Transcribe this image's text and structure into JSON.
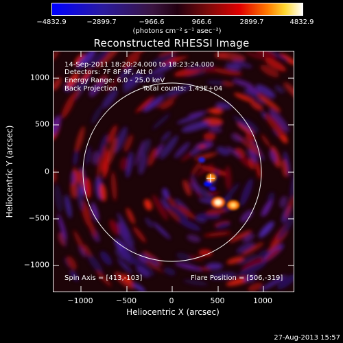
{
  "colorbar": {
    "ticks": [
      "−4832.9",
      "−2899.7",
      "−966.6",
      "966.6",
      "2899.7",
      "4832.9"
    ],
    "units": "(photons cm⁻² s⁻¹ asec⁻²)",
    "colors": [
      "#0000ff",
      "#2a1aa0",
      "#3a1440",
      "#220010",
      "#7a0a0a",
      "#e00000",
      "#ff7a00",
      "#ffd830",
      "#ffffff"
    ]
  },
  "title": "Reconstructed RHESSI Image",
  "info": {
    "time_range": "14-Sep-2011 18:20:24.000 to 18:23:24.000",
    "detectors": "Detectors: 7F 8F 9F, Att 0",
    "energy": "Energy Range: 6.0 - 25.0 keV",
    "method": "Back Projection",
    "counts": "Total counts: 1.43E+04",
    "spin_axis": "Spin Axis = [413,-103]",
    "flare_position": "Flare Position = [506,-319]"
  },
  "axes": {
    "xlabel": "Heliocentric X (arcsec)",
    "ylabel": "Heliocentric Y (arcsec)",
    "xticks": [
      "−1000",
      "−500",
      "0",
      "500",
      "1000"
    ],
    "yticks": [
      "1000",
      "500",
      "0",
      "−500",
      "−1000"
    ]
  },
  "timestamp": "27-Aug-2013 15:57"
}
